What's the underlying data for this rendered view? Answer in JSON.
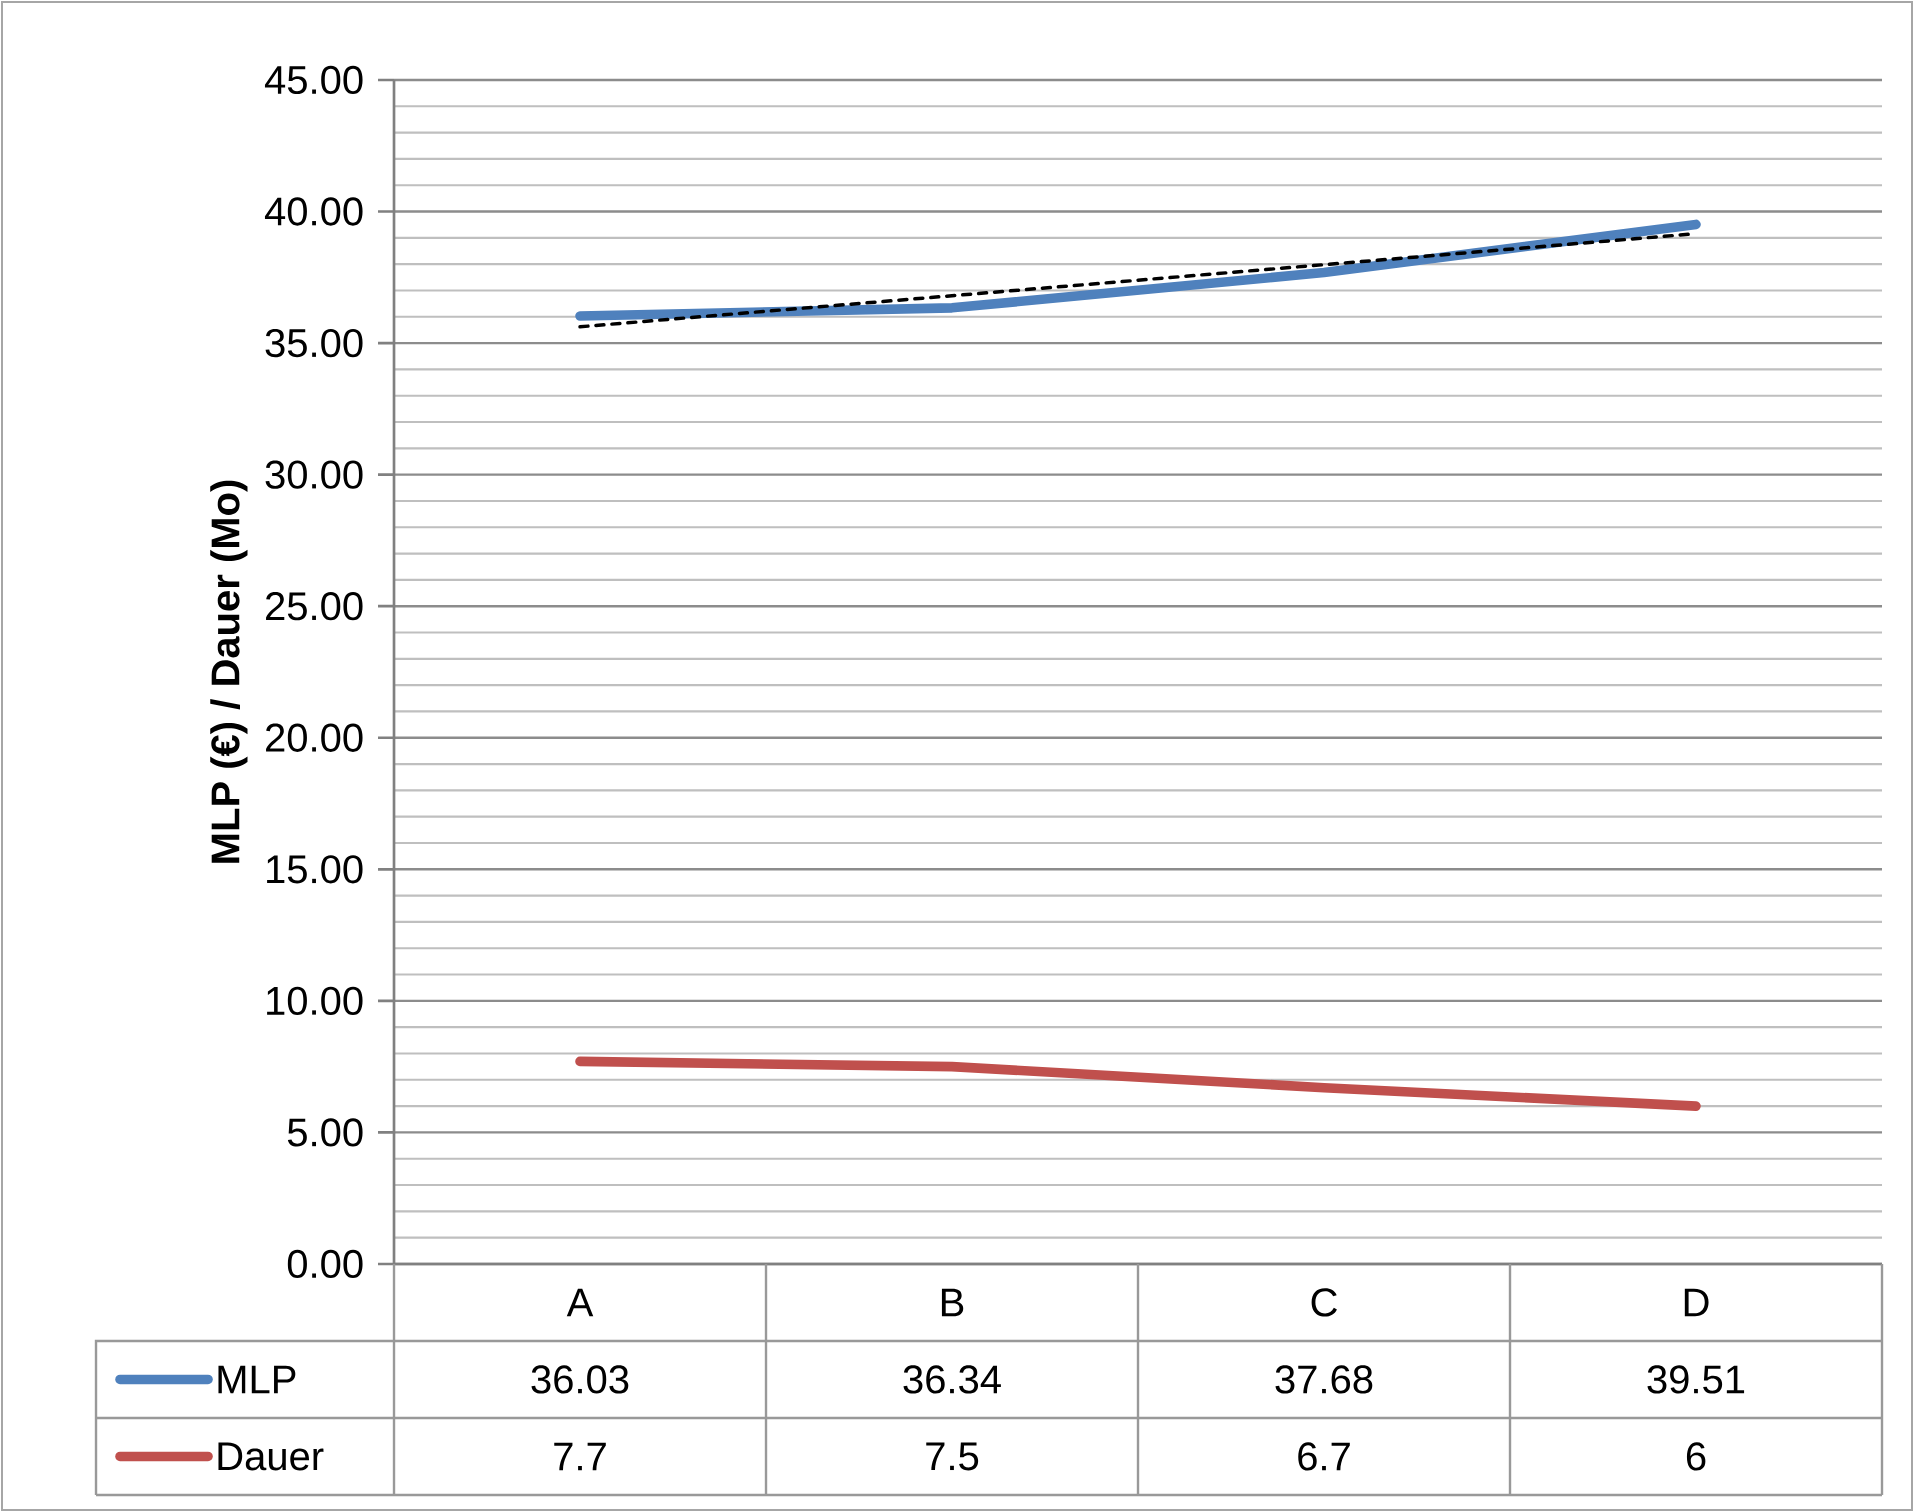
{
  "chart_data": {
    "type": "line",
    "ylabel": "MLP (€) / Dauer (Mo)",
    "categories": [
      "A",
      "B",
      "C",
      "D"
    ],
    "series": [
      {
        "name": "MLP",
        "color": "#4f81bd",
        "values": [
          36.03,
          36.34,
          37.68,
          39.51
        ],
        "value_labels": [
          "36.03",
          "36.34",
          "37.68",
          "39.51"
        ]
      },
      {
        "name": "Dauer",
        "color": "#c0504d",
        "values": [
          7.7,
          7.5,
          6.7,
          6
        ],
        "value_labels": [
          "7.7",
          "7.5",
          "6.7",
          "6"
        ]
      },
      {
        "color": "#000000",
        "values": [
          35.62,
          36.8,
          37.98,
          39.16
        ],
        "line_style": "dashed"
      }
    ],
    "ylim": [
      0,
      45
    ],
    "yticks": [
      {
        "value": 0,
        "label": "0.00"
      },
      {
        "value": 5,
        "label": "5.00"
      },
      {
        "value": 10,
        "label": "10.00"
      },
      {
        "value": 15,
        "label": "15.00"
      },
      {
        "value": 20,
        "label": "20.00"
      },
      {
        "value": 25,
        "label": "25.00"
      },
      {
        "value": 30,
        "label": "30.00"
      },
      {
        "value": 35,
        "label": "35.00"
      },
      {
        "value": 40,
        "label": "40.00"
      },
      {
        "value": 45,
        "label": "45.00"
      }
    ],
    "grid": true,
    "legend": "bottom",
    "marker": "none"
  }
}
